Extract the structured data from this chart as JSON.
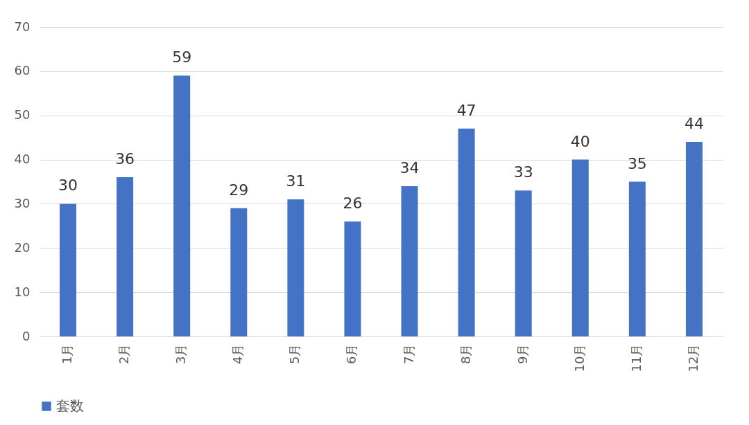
{
  "chart_data": {
    "type": "bar",
    "categories": [
      "1月",
      "2月",
      "3月",
      "4月",
      "5月",
      "6月",
      "7月",
      "8月",
      "9月",
      "10月",
      "11月",
      "12月"
    ],
    "series": [
      {
        "name": "套数",
        "color": "#4472c4",
        "values": [
          30,
          36,
          59,
          29,
          31,
          26,
          34,
          47,
          33,
          40,
          35,
          44
        ]
      }
    ],
    "ylim": [
      0,
      70
    ],
    "yticks": [
      0,
      10,
      20,
      30,
      40,
      50,
      60,
      70
    ],
    "grid": "y",
    "legend": "bottom",
    "data_labels": true
  }
}
